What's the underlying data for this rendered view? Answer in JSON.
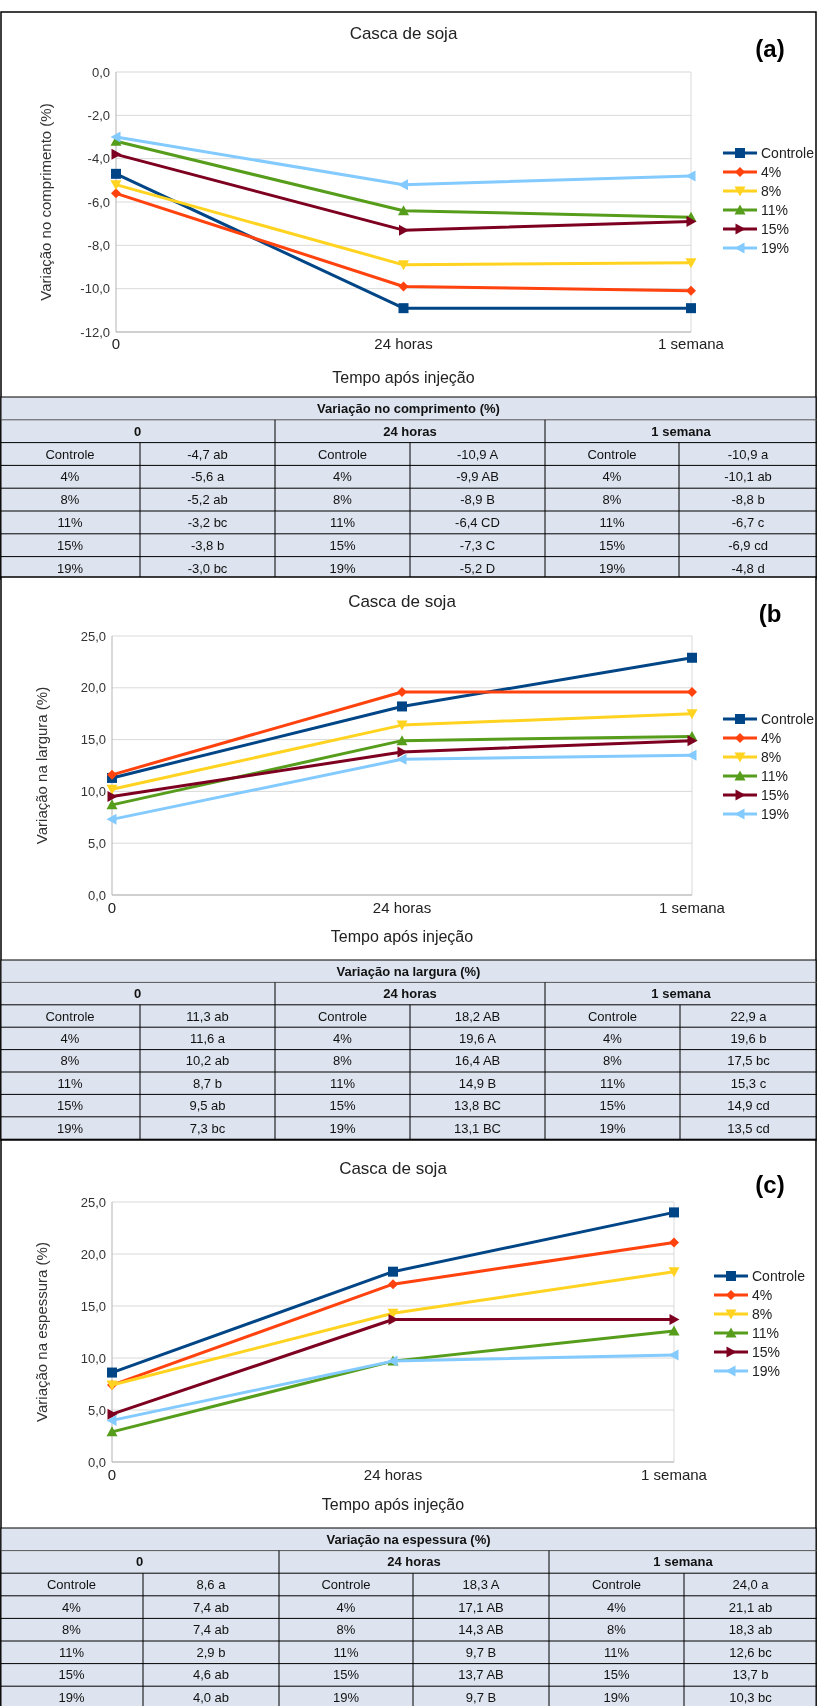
{
  "chart_data": [
    {
      "type": "line",
      "title": "Casca de soja",
      "xlabel": "Tempo após injeção",
      "ylabel": "Variação no comprimento (%)",
      "annotations": [
        "(a)",
        "Variação no comprimento (%)"
      ],
      "categories": [
        "0",
        "24 horas",
        "1 semana"
      ],
      "ylim": [
        -12,
        0
      ],
      "yticks": [
        {
          "value": 0,
          "label": "0,0"
        },
        {
          "value": -2,
          "label": "-2,0"
        },
        {
          "value": -4,
          "label": "-4,0"
        },
        {
          "value": -6,
          "label": "-6,0"
        },
        {
          "value": -8,
          "label": "-8,0"
        },
        {
          "value": -10,
          "label": "-10,0"
        },
        {
          "value": -12,
          "label": "-12,0"
        }
      ],
      "grid": "y",
      "legend": "right",
      "line_style": "solid",
      "series": [
        {
          "name": "Controle",
          "color": "#004586",
          "marker": "square",
          "values": [
            -4.7,
            -10.9,
            -10.9
          ],
          "value_labels": [
            "-4,7 ab",
            "-10,9 A",
            "-10,9 a"
          ]
        },
        {
          "name": "4%",
          "color": "#ff420e",
          "marker": "diamond",
          "values": [
            -5.6,
            -9.9,
            -10.1
          ],
          "value_labels": [
            "-5,6 a",
            "-9,9 AB",
            "-10,1 ab"
          ]
        },
        {
          "name": "8%",
          "color": "#ffd320",
          "marker": "triangle",
          "values": [
            -5.2,
            -8.9,
            -8.8
          ],
          "value_labels": [
            "-5,2 ab",
            "-8,9 B",
            "-8,8 b"
          ]
        },
        {
          "name": "11%",
          "color": "#579d1c",
          "marker": "triangle",
          "values": [
            -3.2,
            -6.4,
            -6.7
          ],
          "value_labels": [
            "-3,2 bc",
            "-6,4 CD",
            "-6,7 c"
          ]
        },
        {
          "name": "15%",
          "color": "#7e0021",
          "marker": "triangle",
          "values": [
            -3.8,
            -7.3,
            -6.9
          ],
          "value_labels": [
            "-3,8 b",
            "-7,3 C",
            "-6,9 cd"
          ]
        },
        {
          "name": "19%",
          "color": "#83caff",
          "marker": "triangle",
          "values": [
            -3.0,
            -5.2,
            -4.8
          ],
          "value_labels": [
            "-3,0 bc",
            "-5,2 D",
            "-4,8 d"
          ]
        }
      ]
    },
    {
      "type": "line",
      "title": "Casca de soja",
      "xlabel": "Tempo após injeção",
      "ylabel": "Variação na largura (%)",
      "annotations": [
        "(b",
        "Variação na largura (%)"
      ],
      "categories": [
        "0",
        "24 horas",
        "1 semana"
      ],
      "ylim": [
        0,
        25
      ],
      "yticks": [
        {
          "value": 0,
          "label": "0,0"
        },
        {
          "value": 5,
          "label": "5,0"
        },
        {
          "value": 10,
          "label": "10,0"
        },
        {
          "value": 15,
          "label": "15,0"
        },
        {
          "value": 20,
          "label": "20,0"
        },
        {
          "value": 25,
          "label": "25,0"
        }
      ],
      "grid": "y",
      "legend": "right",
      "line_style": "solid",
      "series": [
        {
          "name": "Controle",
          "color": "#004586",
          "marker": "square",
          "values": [
            11.3,
            18.2,
            22.9
          ],
          "value_labels": [
            "11,3 ab",
            "18,2 AB",
            "22,9 a"
          ]
        },
        {
          "name": "4%",
          "color": "#ff420e",
          "marker": "diamond",
          "values": [
            11.6,
            19.6,
            19.6
          ],
          "value_labels": [
            "11,6 a",
            "19,6 A",
            "19,6 b"
          ]
        },
        {
          "name": "8%",
          "color": "#ffd320",
          "marker": "triangle",
          "values": [
            10.2,
            16.4,
            17.5
          ],
          "value_labels": [
            "10,2 ab",
            "16,4 AB",
            "17,5 bc"
          ]
        },
        {
          "name": "11%",
          "color": "#579d1c",
          "marker": "triangle",
          "values": [
            8.7,
            14.9,
            15.3
          ],
          "value_labels": [
            "8,7 b",
            "14,9 B",
            "15,3 c"
          ]
        },
        {
          "name": "15%",
          "color": "#7e0021",
          "marker": "triangle",
          "values": [
            9.5,
            13.8,
            14.9
          ],
          "value_labels": [
            "9,5 ab",
            "13,8 BC",
            "14,9 cd"
          ]
        },
        {
          "name": "19%",
          "color": "#83caff",
          "marker": "triangle",
          "values": [
            7.3,
            13.1,
            13.5
          ],
          "value_labels": [
            "7,3 bc",
            "13,1 BC",
            "13,5 cd"
          ]
        }
      ]
    },
    {
      "type": "line",
      "title": "Casca de soja",
      "xlabel": "Tempo após injeção",
      "ylabel": "Variação na espessura (%)",
      "annotations": [
        "(c)",
        "Variação na espessura (%)"
      ],
      "categories": [
        "0",
        "24 horas",
        "1 semana"
      ],
      "ylim": [
        0,
        25
      ],
      "yticks": [
        {
          "value": 0,
          "label": "0,0"
        },
        {
          "value": 5,
          "label": "5,0"
        },
        {
          "value": 10,
          "label": "10,0"
        },
        {
          "value": 15,
          "label": "15,0"
        },
        {
          "value": 20,
          "label": "20,0"
        },
        {
          "value": 25,
          "label": "25,0"
        }
      ],
      "grid": "y",
      "legend": "right",
      "line_style": "solid",
      "series": [
        {
          "name": "Controle",
          "color": "#004586",
          "marker": "square",
          "values": [
            8.6,
            18.3,
            24.0
          ],
          "value_labels": [
            "8,6 a",
            "18,3 A",
            "24,0 a"
          ]
        },
        {
          "name": "4%",
          "color": "#ff420e",
          "marker": "diamond",
          "values": [
            7.4,
            17.1,
            21.1
          ],
          "value_labels": [
            "7,4 ab",
            "17,1 AB",
            "21,1 ab"
          ]
        },
        {
          "name": "8%",
          "color": "#ffd320",
          "marker": "triangle",
          "values": [
            7.4,
            14.3,
            18.3
          ],
          "value_labels": [
            "7,4 ab",
            "14,3 AB",
            "18,3 ab"
          ]
        },
        {
          "name": "11%",
          "color": "#579d1c",
          "marker": "triangle",
          "values": [
            2.9,
            9.7,
            12.6
          ],
          "value_labels": [
            "2,9 b",
            "9,7 B",
            "12,6 bc"
          ]
        },
        {
          "name": "15%",
          "color": "#7e0021",
          "marker": "triangle",
          "values": [
            4.6,
            13.7,
            13.7
          ],
          "value_labels": [
            "4,6 ab",
            "13,7 AB",
            "13,7 b"
          ]
        },
        {
          "name": "19%",
          "color": "#83caff",
          "marker": "triangle",
          "values": [
            4.0,
            9.7,
            10.3
          ],
          "value_labels": [
            "4,0 ab",
            "9,7 B",
            "10,3 bc"
          ]
        }
      ]
    }
  ]
}
